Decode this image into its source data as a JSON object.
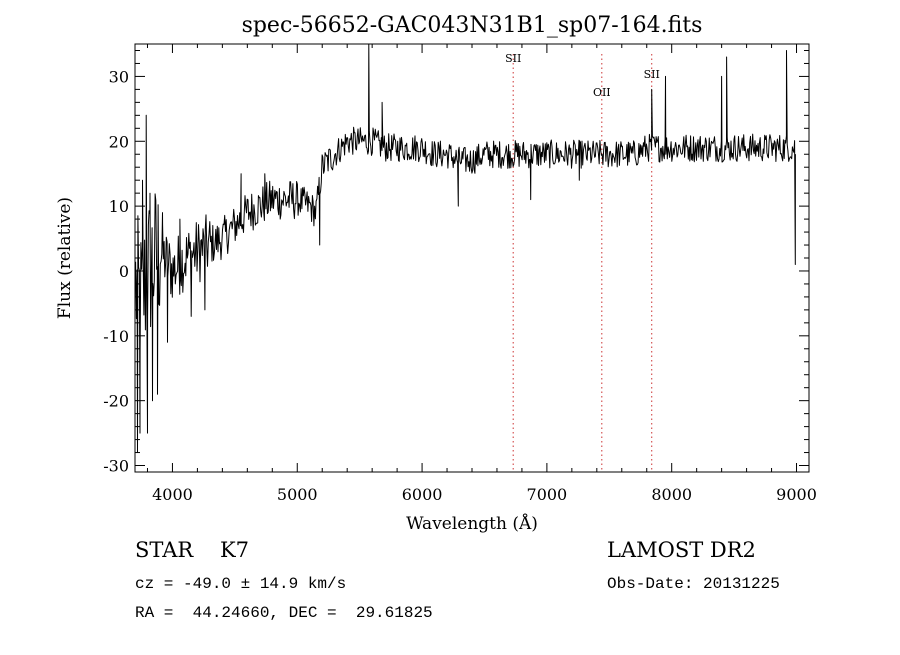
{
  "chart_data": {
    "type": "line",
    "title": "spec-56652-GAC043N31B1_sp07-164.fits",
    "xlabel": "Wavelength (Å)",
    "ylabel": "Flux (relative)",
    "xlim": [
      3700,
      9100
    ],
    "ylim": [
      -31,
      35
    ],
    "xticks": [
      4000,
      5000,
      6000,
      7000,
      8000,
      9000
    ],
    "yticks": [
      -30,
      -20,
      -10,
      0,
      10,
      20,
      30
    ],
    "grid": false,
    "legend": "none",
    "line_color": "#000000",
    "marker_line_color": "#cc3333",
    "continuum": {
      "x": [
        3700,
        3750,
        3800,
        3900,
        4000,
        4100,
        4200,
        4300,
        4400,
        4500,
        4600,
        4700,
        4800,
        4900,
        5000,
        5100,
        5150,
        5200,
        5300,
        5400,
        5500,
        5600,
        5700,
        5800,
        5900,
        6000,
        6100,
        6200,
        6300,
        6400,
        6500,
        6600,
        6700,
        6800,
        6900,
        7000,
        7100,
        7200,
        7300,
        7400,
        7500,
        7600,
        7700,
        7800,
        7900,
        8000,
        8100,
        8200,
        8300,
        8400,
        8500,
        8600,
        8700,
        8800,
        8900,
        8950
      ],
      "y": [
        -2,
        -5,
        0,
        3,
        0,
        2,
        3,
        4,
        5,
        7,
        9,
        10,
        11,
        11,
        11,
        10,
        9,
        16,
        18,
        20,
        20,
        20,
        19,
        19,
        19,
        19,
        18,
        18,
        17,
        17,
        18,
        18,
        18,
        18,
        18,
        18,
        18,
        18,
        18,
        18,
        18,
        18,
        18,
        19,
        19,
        19,
        19,
        19,
        19,
        19,
        19,
        19,
        19,
        19,
        19,
        19
      ]
    },
    "spikes": [
      {
        "x": 3720,
        "y": -28
      },
      {
        "x": 3740,
        "y": -25
      },
      {
        "x": 3760,
        "y": 14
      },
      {
        "x": 3790,
        "y": 24
      },
      {
        "x": 3800,
        "y": -25
      },
      {
        "x": 3820,
        "y": 12
      },
      {
        "x": 3840,
        "y": -20
      },
      {
        "x": 3860,
        "y": 10
      },
      {
        "x": 3880,
        "y": -19
      },
      {
        "x": 3920,
        "y": 9
      },
      {
        "x": 3960,
        "y": -11
      },
      {
        "x": 4060,
        "y": 8
      },
      {
        "x": 4150,
        "y": -7
      },
      {
        "x": 4260,
        "y": -6
      },
      {
        "x": 4550,
        "y": 15
      },
      {
        "x": 4740,
        "y": 15
      },
      {
        "x": 5180,
        "y": 4
      },
      {
        "x": 5573,
        "y": 35
      },
      {
        "x": 5680,
        "y": 26
      },
      {
        "x": 6290,
        "y": 10
      },
      {
        "x": 6870,
        "y": 11
      },
      {
        "x": 7260,
        "y": 14
      },
      {
        "x": 7840,
        "y": 28
      },
      {
        "x": 7950,
        "y": 30
      },
      {
        "x": 8400,
        "y": 30
      },
      {
        "x": 8440,
        "y": 33
      },
      {
        "x": 8760,
        "y": 20
      },
      {
        "x": 8920,
        "y": 34
      },
      {
        "x": 8990,
        "y": 1
      }
    ],
    "lines": [
      {
        "label": "SII",
        "x": 6730
      },
      {
        "label": "OII",
        "x": 7440
      },
      {
        "label": "SII",
        "x": 7840
      }
    ]
  },
  "info": {
    "object_class": "STAR",
    "subclass": "K7",
    "survey": "LAMOST DR2",
    "velocity": "cz = -49.0 ± 14.9 km/s",
    "obs_date": "Obs-Date: 20131225",
    "coordinates": "RA =  44.24660, DEC =  29.61825"
  }
}
